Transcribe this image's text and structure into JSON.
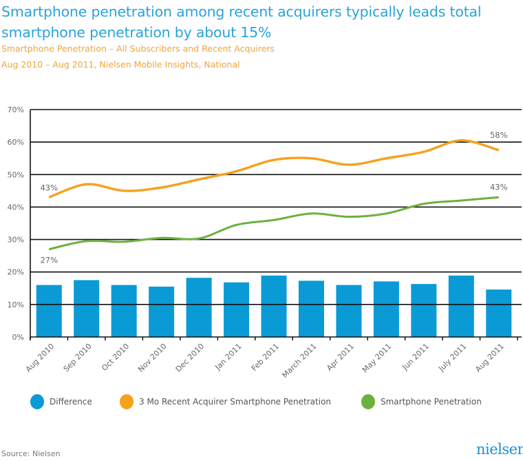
{
  "header": {
    "title": "Smartphone penetration among recent acquirers typically leads total smartphone penetration by about 15%",
    "subtitle1": "Smartphone Penetration – All Subscribers and Recent Acquirers",
    "subtitle2": "Aug 2010 – Aug 2011, Nielsen Mobile Insights, National"
  },
  "footer": {
    "source": "Source: Nielsen",
    "logo": "nielsen"
  },
  "colors": {
    "title": "#2aa3d8",
    "subtitle": "#f0a43a",
    "bar": "#0a9ad6",
    "orange": "#f5a21f",
    "green": "#6cb13e"
  },
  "chart_data": {
    "type": "bar+line",
    "categories": [
      "Aug 2010",
      "Sep 2010",
      "Oct 2010",
      "Nov 2010",
      "Dec 2010",
      "Jan 2011",
      "Feb 2011",
      "March 2011",
      "Apr 2011",
      "May 2011",
      "Jun 2011",
      "July 2011",
      "Aug 2011"
    ],
    "ylim": [
      0,
      70
    ],
    "yticks": [
      "0%",
      "10%",
      "20%",
      "30%",
      "40%",
      "50%",
      "60%",
      "70%"
    ],
    "grid": true,
    "legend_position": "bottom",
    "series": [
      {
        "name": "Difference",
        "type": "bar",
        "color": "#0a9ad6",
        "values": [
          16,
          17.5,
          16,
          15.5,
          18.2,
          16.8,
          18.9,
          17.3,
          16,
          17.1,
          16.3,
          18.9,
          14.6
        ]
      },
      {
        "name": "3 Mo Recent Acquirer Smartphone Penetration",
        "type": "line",
        "color": "#f5a21f",
        "values": [
          43,
          47,
          45,
          46,
          48.5,
          51,
          54.5,
          55,
          53,
          55,
          57,
          60.5,
          57.5
        ]
      },
      {
        "name": "Smartphone Penetration",
        "type": "line",
        "color": "#6cb13e",
        "values": [
          27,
          29.5,
          29.3,
          30.5,
          30.3,
          34.5,
          36,
          38,
          37,
          38,
          41,
          42,
          43
        ]
      }
    ],
    "annotations": {
      "orange_start": "43%",
      "orange_end": "58%",
      "green_start": "27%",
      "green_end": "43%"
    }
  }
}
